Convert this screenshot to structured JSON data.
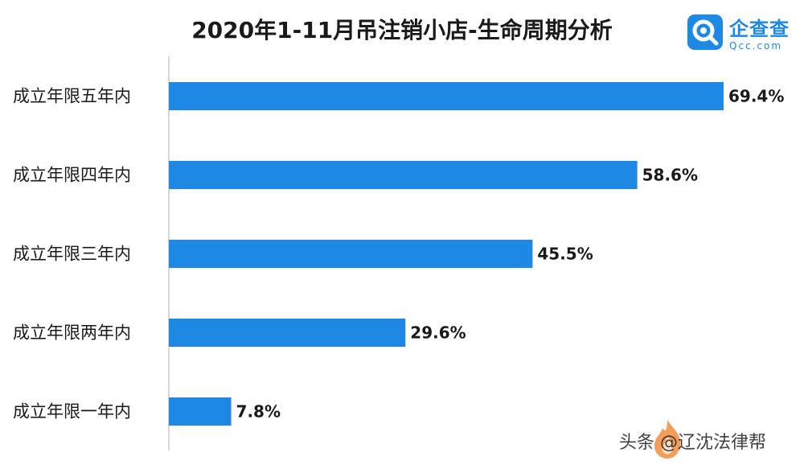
{
  "title": "2020年1-11月吊注销小店-生命周期分析",
  "logo": {
    "name": "企查查",
    "domain": "Qcc.com",
    "icon": "qcc-magnifier-icon",
    "color": "#1e88e5"
  },
  "watermark": {
    "text": "头条 @辽沈法律帮",
    "icon": "flame-icon"
  },
  "chart_data": {
    "type": "bar",
    "orientation": "horizontal",
    "title": "2020年1-11月吊注销小店-生命周期分析",
    "categories": [
      "成立年限五年内",
      "成立年限四年内",
      "成立年限三年内",
      "成立年限两年内",
      "成立年限一年内"
    ],
    "values": [
      69.4,
      58.6,
      45.5,
      29.6,
      7.8
    ],
    "value_labels": [
      "69.4%",
      "58.6%",
      "45.5%",
      "29.6%",
      "7.8%"
    ],
    "xlim": [
      0,
      69.4
    ],
    "bar_color": "#1e88e5",
    "legend": "none",
    "grid": false
  }
}
